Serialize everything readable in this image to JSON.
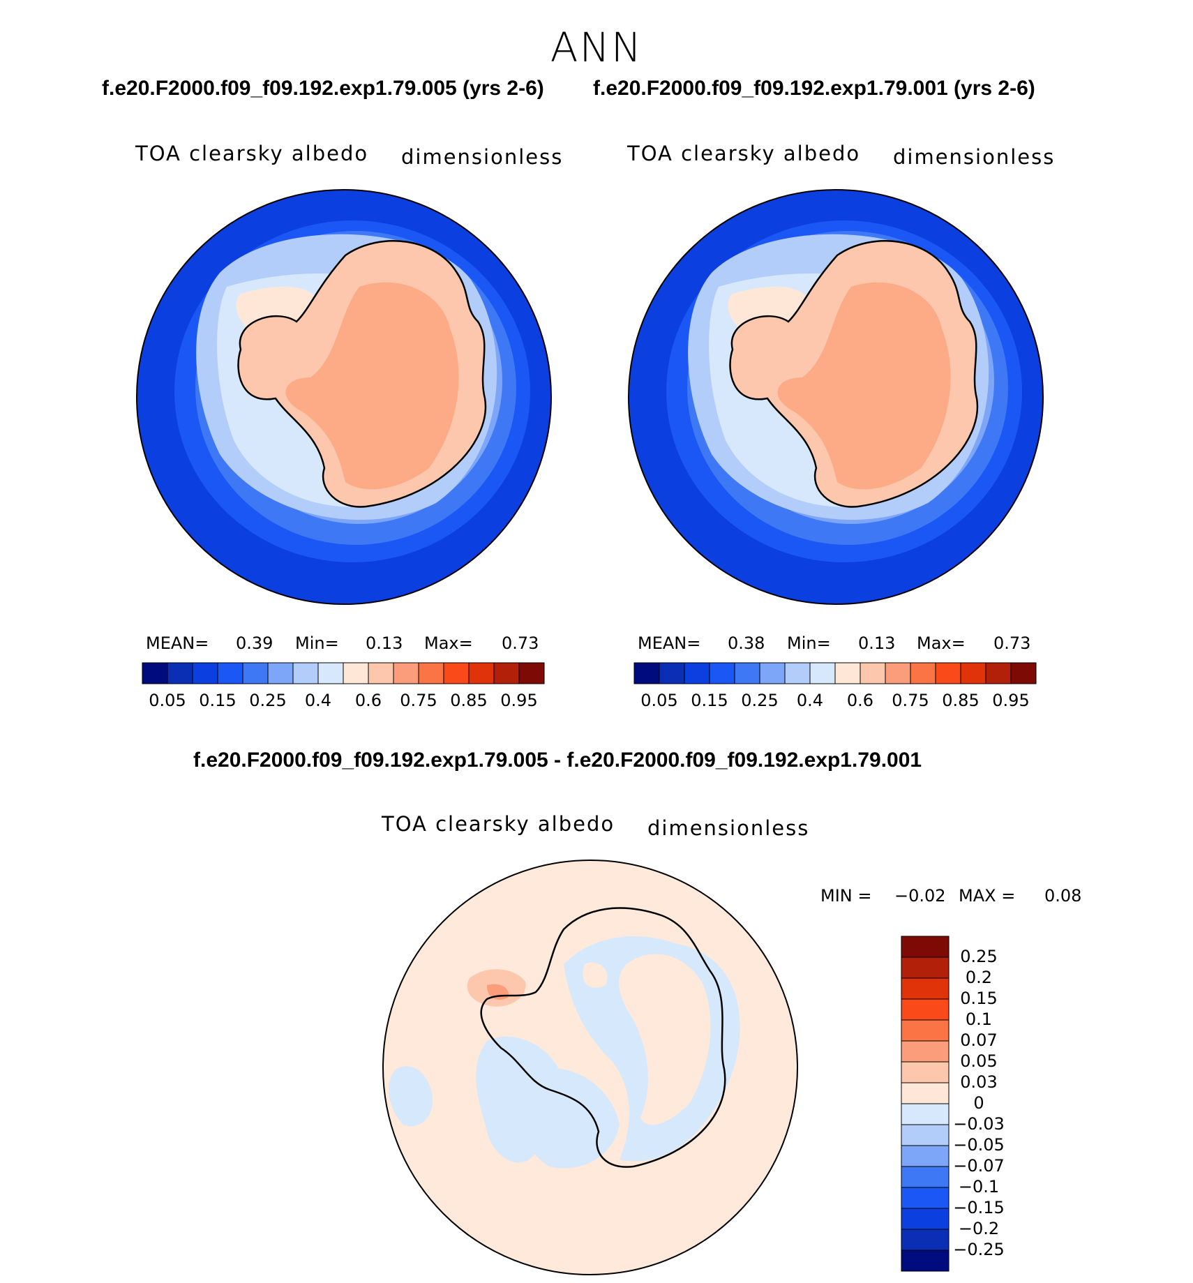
{
  "figure_title": "ANN",
  "colors": {
    "ramp": [
      "#000c7d",
      "#0a2fb4",
      "#0c3fe0",
      "#1b57f4",
      "#3e78f5",
      "#7da6f8",
      "#b3cdfb",
      "#d8e8fc",
      "#ffe7d8",
      "#fcc7ad",
      "#fb9c7a",
      "#fa7445",
      "#fa4a1a",
      "#e0330a",
      "#b3200a",
      "#7d0a05"
    ],
    "ocean_outer": "#0c3fe0",
    "ice_inner": "#fcab86",
    "diff_background": "#ffe9da",
    "diff_negative": "#d6e8fc"
  },
  "panels": [
    {
      "case_title": "f.e20.F2000.f09_f09.192.exp1.79.005 (yrs 2-6)",
      "var_name": "TOA clearsky albedo",
      "units": "dimensionless",
      "stats": {
        "mean_label": "MEAN=",
        "mean": "0.39",
        "min_label": "Min=",
        "min": "0.13",
        "max_label": "Max=",
        "max": "0.73"
      },
      "colorbar_labels": [
        "0.05",
        "0.15",
        "0.25",
        "0.4",
        "0.6",
        "0.75",
        "0.85",
        "0.95"
      ]
    },
    {
      "case_title": "f.e20.F2000.f09_f09.192.exp1.79.001 (yrs 2-6)",
      "var_name": "TOA clearsky albedo",
      "units": "dimensionless",
      "stats": {
        "mean_label": "MEAN=",
        "mean": "0.38",
        "min_label": "Min=",
        "min": "0.13",
        "max_label": "Max=",
        "max": "0.73"
      },
      "colorbar_labels": [
        "0.05",
        "0.15",
        "0.25",
        "0.4",
        "0.6",
        "0.75",
        "0.85",
        "0.95"
      ]
    }
  ],
  "diff_panel": {
    "case_title": "f.e20.F2000.f09_f09.192.exp1.79.005 - f.e20.F2000.f09_f09.192.exp1.79.001",
    "var_name": "TOA clearsky albedo",
    "units": "dimensionless",
    "stats": {
      "min_label": "MIN =",
      "min": "−0.02",
      "max_label": "MAX =",
      "max": "0.08"
    },
    "colorbar_labels": [
      "0.25",
      "0.2",
      "0.15",
      "0.1",
      "0.07",
      "0.05",
      "0.03",
      "0",
      "−0.03",
      "−0.05",
      "−0.07",
      "−0.1",
      "−0.15",
      "−0.2",
      "−0.25"
    ]
  }
}
